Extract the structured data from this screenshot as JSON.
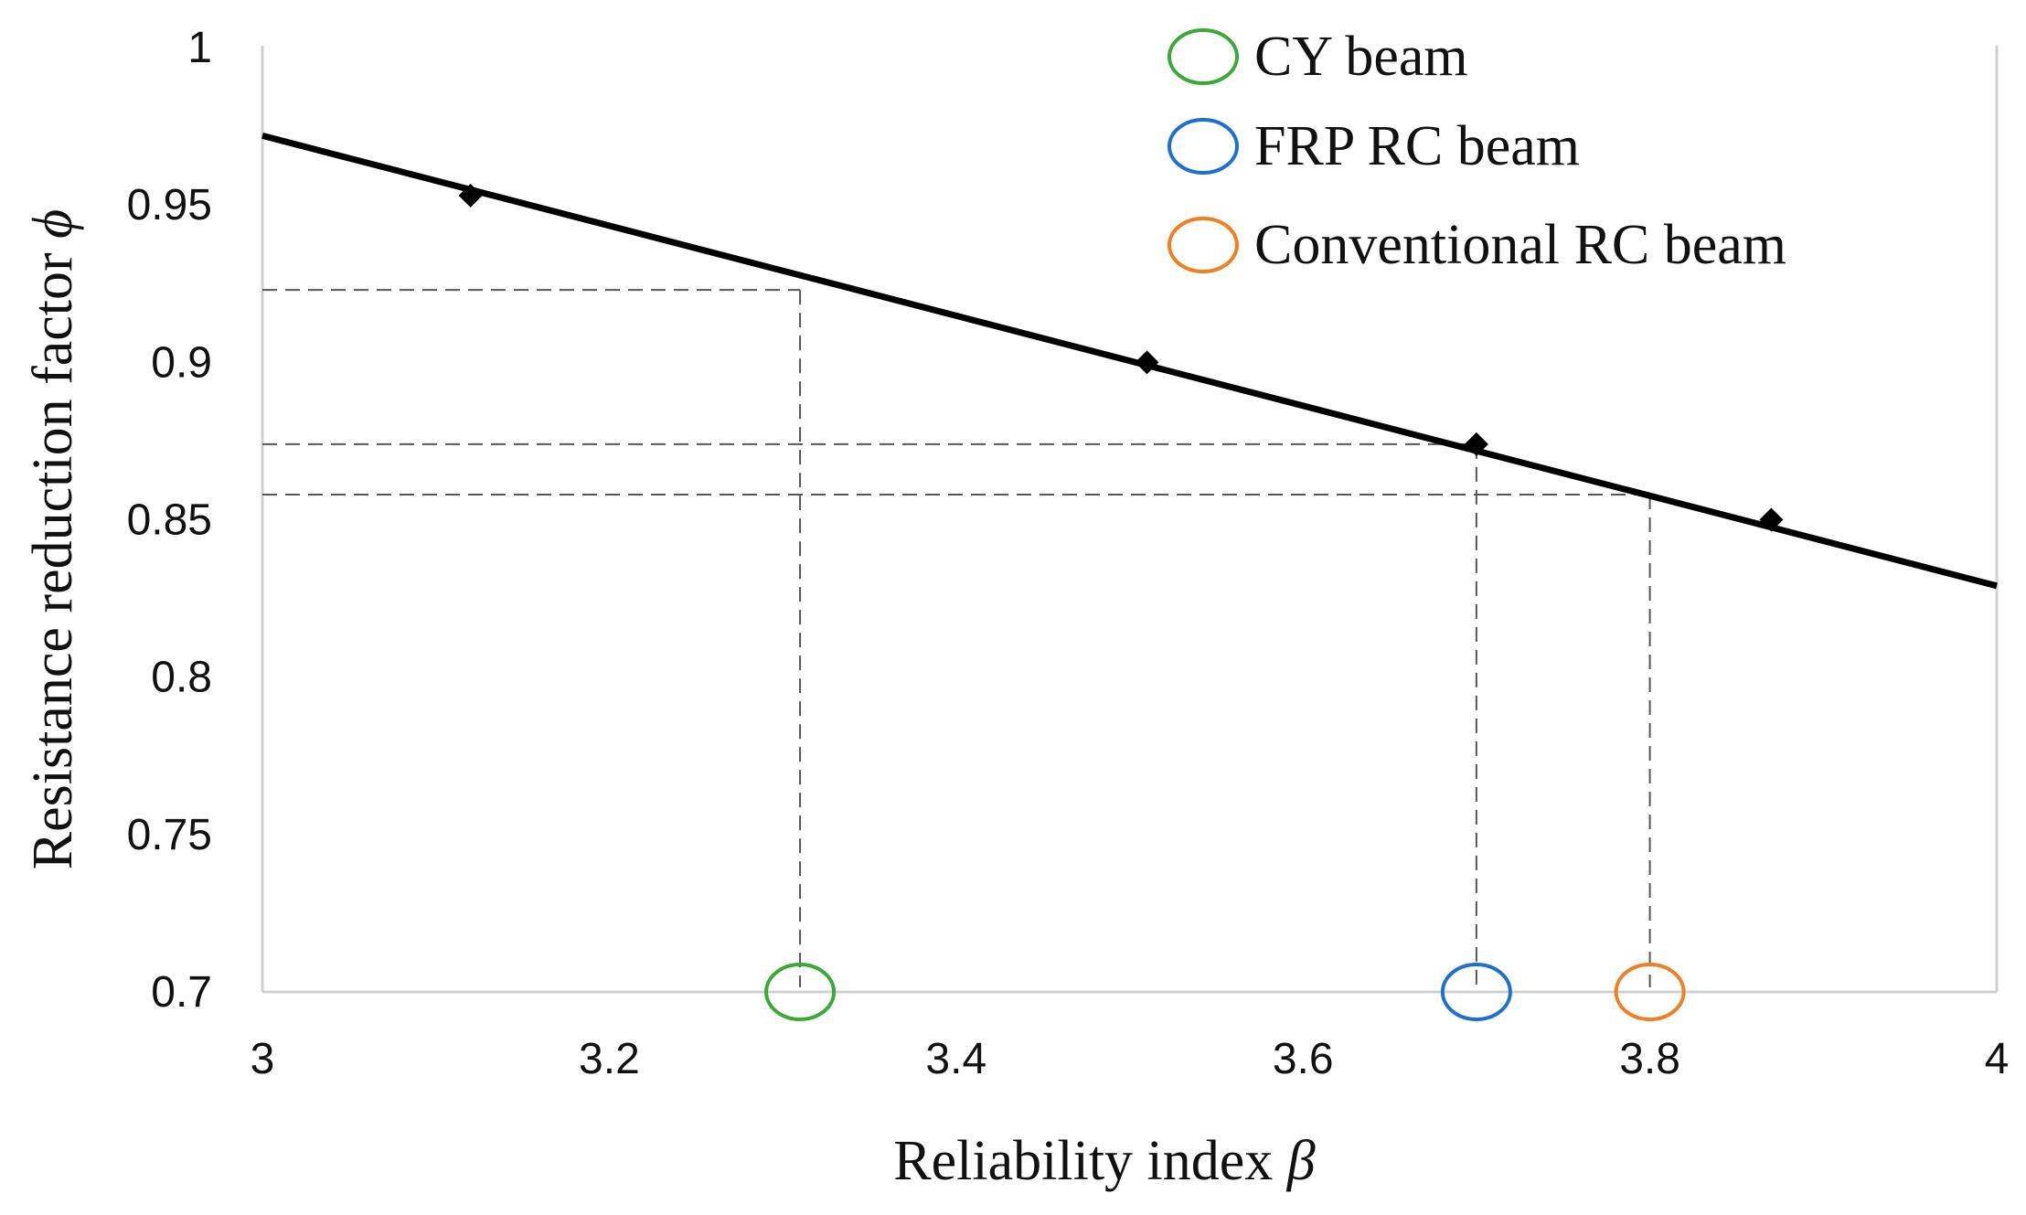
{
  "chart_data": {
    "type": "line",
    "xlabel": "Reliability index",
    "xlabel_symbol": "β",
    "ylabel": "Resistance reduction factor",
    "ylabel_symbol": "ϕ",
    "xlim": [
      3,
      4
    ],
    "ylim": [
      0.7,
      1.0
    ],
    "x_ticks": [
      3,
      3.2,
      3.4,
      3.6,
      3.8,
      4
    ],
    "x_tick_labels": [
      "3",
      "3.2",
      "3.4",
      "3.6",
      "3.8",
      "4"
    ],
    "y_ticks": [
      0.7,
      0.75,
      0.8,
      0.85,
      0.9,
      0.95,
      1.0
    ],
    "y_tick_labels": [
      "0.7",
      "0.75",
      "0.8",
      "0.85",
      "0.9",
      "0.95",
      "1"
    ],
    "grid": false,
    "legend_position": "top-right",
    "series": [
      {
        "type": "line",
        "x": [
          3.0,
          4.0
        ],
        "y": [
          0.972,
          0.829
        ],
        "color": "#000000"
      },
      {
        "type": "scatter",
        "marker": "diamond",
        "x": [
          3.12,
          3.51,
          3.7,
          3.87
        ],
        "y": [
          0.953,
          0.9,
          0.874,
          0.85
        ],
        "color": "#000000"
      }
    ],
    "highlighted_points": [
      {
        "name": "CY beam",
        "x": 3.31,
        "y": 0.923,
        "color": "#3aa935"
      },
      {
        "name": "FRP RC beam",
        "x": 3.7,
        "y": 0.874,
        "color": "#1f6fd1"
      },
      {
        "name": "Conventional RC beam",
        "x": 3.8,
        "y": 0.858,
        "color": "#f07f22"
      }
    ],
    "colors": {
      "axis": "#d0d0d0",
      "guide": "#555555",
      "line": "#000000"
    }
  }
}
